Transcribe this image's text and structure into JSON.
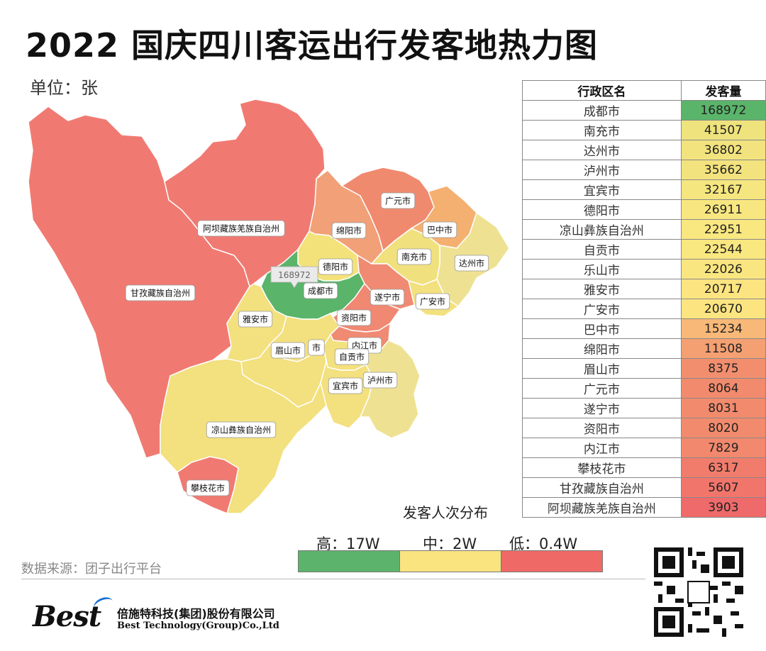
{
  "header": {
    "title": "2022 国庆四川客运出行发客地热力图",
    "unit": "单位：张"
  },
  "map": {
    "highlight_value": "168972",
    "regions": [
      {
        "name": "阿坝藏族羌族自治州",
        "color": "#f07a72"
      },
      {
        "name": "甘孜藏族自治州",
        "color": "#f07a72"
      },
      {
        "name": "成都市",
        "color": "#5ab46a"
      },
      {
        "name": "德阳市",
        "color": "#f3e27a"
      },
      {
        "name": "绵阳市",
        "color": "#f1a077"
      },
      {
        "name": "广元市",
        "color": "#f08a6e"
      },
      {
        "name": "巴中市",
        "color": "#f4b070"
      },
      {
        "name": "南充市",
        "color": "#f0e17e"
      },
      {
        "name": "达州市",
        "color": "#eee292"
      },
      {
        "name": "遂宁市",
        "color": "#f08a72"
      },
      {
        "name": "广安市",
        "color": "#f3e07e"
      },
      {
        "name": "资阳市",
        "color": "#f08872"
      },
      {
        "name": "雅安市",
        "color": "#f3e07e"
      },
      {
        "name": "眉山市",
        "color": "#f3e07e"
      },
      {
        "name": "乐山市",
        "color": "#f3e07e"
      },
      {
        "name": "内江市",
        "color": "#f08a72"
      },
      {
        "name": "自贡市",
        "color": "#f3e07e"
      },
      {
        "name": "宜宾市",
        "color": "#f3e07e"
      },
      {
        "name": "泸州市",
        "color": "#eee292"
      },
      {
        "name": "凉山彝族自治州",
        "color": "#f3e07e"
      },
      {
        "name": "攀枝花市",
        "color": "#f07a72"
      }
    ]
  },
  "table": {
    "headers": [
      "行政区名",
      "发客量"
    ],
    "rows": [
      {
        "name": "成都市",
        "value": "168972",
        "color": "#5ab46a"
      },
      {
        "name": "南充市",
        "value": "41507",
        "color": "#eee37c"
      },
      {
        "name": "达州市",
        "value": "36802",
        "color": "#f3e37e"
      },
      {
        "name": "泸州市",
        "value": "35662",
        "color": "#f3e37e"
      },
      {
        "name": "宜宾市",
        "value": "32167",
        "color": "#f6e67f"
      },
      {
        "name": "德阳市",
        "value": "26911",
        "color": "#f8e780"
      },
      {
        "name": "凉山彝族自治州",
        "value": "22951",
        "color": "#f9e780"
      },
      {
        "name": "自贡市",
        "value": "22544",
        "color": "#f9e780"
      },
      {
        "name": "乐山市",
        "value": "22026",
        "color": "#fae680"
      },
      {
        "name": "雅安市",
        "value": "20717",
        "color": "#fce481"
      },
      {
        "name": "广安市",
        "value": "20670",
        "color": "#fce481"
      },
      {
        "name": "巴中市",
        "value": "15234",
        "color": "#f7b878"
      },
      {
        "name": "绵阳市",
        "value": "11508",
        "color": "#f4a072"
      },
      {
        "name": "眉山市",
        "value": "8375",
        "color": "#f28e6e"
      },
      {
        "name": "广元市",
        "value": "8064",
        "color": "#f28b6d"
      },
      {
        "name": "遂宁市",
        "value": "8031",
        "color": "#f28b6d"
      },
      {
        "name": "资阳市",
        "value": "8020",
        "color": "#f28b6d"
      },
      {
        "name": "内江市",
        "value": "7829",
        "color": "#f2886d"
      },
      {
        "name": "攀枝花市",
        "value": "6317",
        "color": "#f27c6c"
      },
      {
        "name": "甘孜藏族自治州",
        "value": "5607",
        "color": "#f2756c"
      },
      {
        "name": "阿坝藏族羌族自治州",
        "value": "3903",
        "color": "#ef6a6a"
      }
    ]
  },
  "legend": {
    "title": "发客人次分布",
    "high_label": "高：17W",
    "mid_label": "中：2W",
    "low_label": "低：0.4W",
    "colors": {
      "high": "#5cb46c",
      "mid": "#f9e480",
      "low": "#ef6a66"
    }
  },
  "footer": {
    "source": "数据来源：团子出行平台",
    "logo_text": "Best",
    "company_cn": "倍施特科技(集团)股份有限公司",
    "company_en": "Best Technology(Group)Co.,Ltd"
  }
}
